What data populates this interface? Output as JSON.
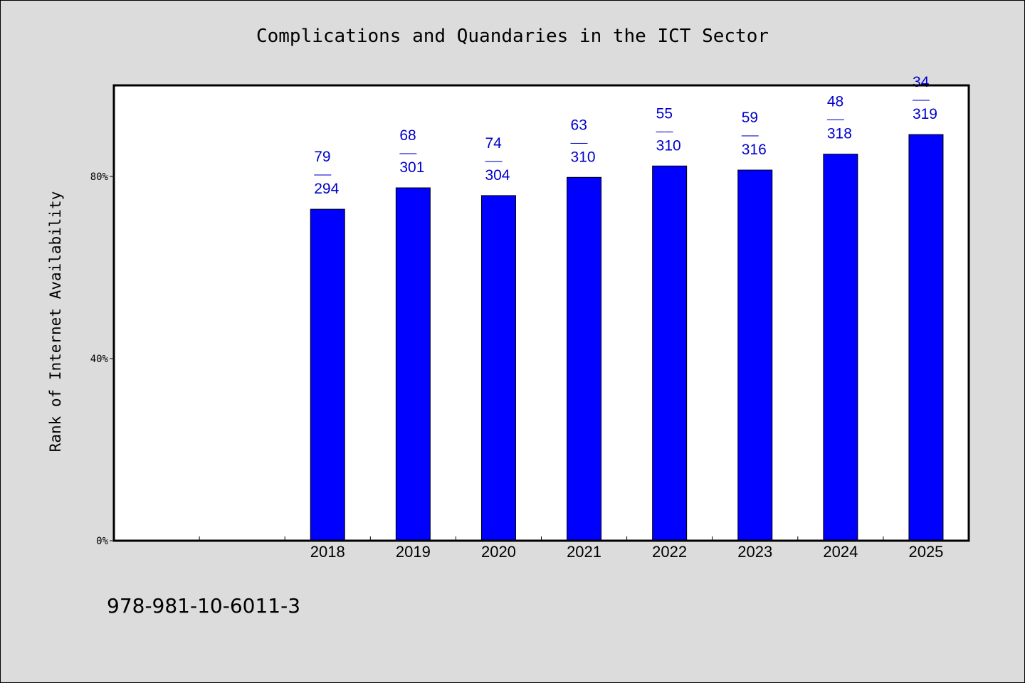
{
  "chart_data": {
    "type": "bar",
    "title": "Complications and Quandaries in the ICT Sector",
    "ylabel": "Rank of Internet Availability",
    "xlabel": "",
    "categories": [
      "2018",
      "2019",
      "2020",
      "2021",
      "2022",
      "2023",
      "2024",
      "2025"
    ],
    "values": [
      72.8,
      77.5,
      75.8,
      79.8,
      82.3,
      81.4,
      84.9,
      89.2
    ],
    "labels_top": [
      "79",
      "68",
      "74",
      "63",
      "55",
      "59",
      "48",
      "34"
    ],
    "labels_bottom": [
      "294",
      "301",
      "304",
      "310",
      "310",
      "316",
      "318",
      "319"
    ],
    "label_separator": "——",
    "ylim": [
      0,
      100
    ],
    "yticks": [
      0,
      40,
      80
    ],
    "ytick_labels": [
      "0%",
      "40%",
      "80%"
    ],
    "grid": false,
    "bar_color": "#0000ff",
    "label_color": "#0000cc"
  },
  "footer": "978-981-10-6011-3"
}
